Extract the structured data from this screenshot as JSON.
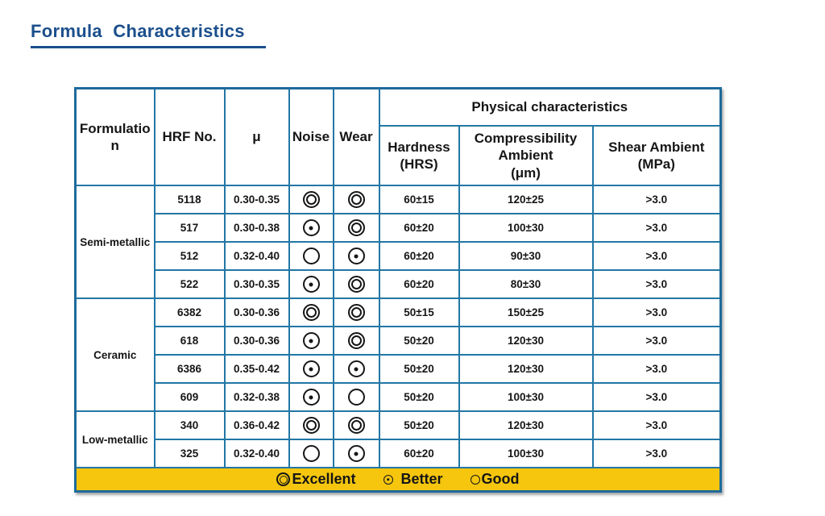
{
  "title": "Formula Characteristics",
  "colors": {
    "title": "#1b4f8c",
    "table_border": "#2277a6",
    "legend_background": "#f5c60d",
    "text": "#161616"
  },
  "table": {
    "header": {
      "formulation": "Formulation",
      "hrf_no": "HRF No.",
      "mu": "μ",
      "noise": "Noise",
      "wear": "Wear",
      "physical": "Physical characteristics",
      "hardness": {
        "label": "Hardness",
        "unit": "(HRS)"
      },
      "compressibility": {
        "label": "Compressibility Ambient",
        "unit": "(μm)"
      },
      "shear": {
        "label": "Shear Ambient",
        "unit": "(MPa)"
      }
    },
    "groups": [
      {
        "name": "Semi-metallic",
        "rows": [
          {
            "hrf_no": "5118",
            "mu": "0.30-0.35",
            "noise": "excellent",
            "wear": "excellent",
            "hardness": "60±15",
            "compressibility_ambient": "120±25",
            "shear_ambient": ">3.0"
          },
          {
            "hrf_no": "517",
            "mu": "0.30-0.38",
            "noise": "better",
            "wear": "excellent",
            "hardness": "60±20",
            "compressibility_ambient": "100±30",
            "shear_ambient": ">3.0"
          },
          {
            "hrf_no": "512",
            "mu": "0.32-0.40",
            "noise": "good",
            "wear": "better",
            "hardness": "60±20",
            "compressibility_ambient": "90±30",
            "shear_ambient": ">3.0"
          },
          {
            "hrf_no": "522",
            "mu": "0.30-0.35",
            "noise": "better",
            "wear": "excellent",
            "hardness": "60±20",
            "compressibility_ambient": "80±30",
            "shear_ambient": ">3.0"
          }
        ]
      },
      {
        "name": "Ceramic",
        "rows": [
          {
            "hrf_no": "6382",
            "mu": "0.30-0.36",
            "noise": "excellent",
            "wear": "excellent",
            "hardness": "50±15",
            "compressibility_ambient": "150±25",
            "shear_ambient": ">3.0"
          },
          {
            "hrf_no": "618",
            "mu": "0.30-0.36",
            "noise": "better",
            "wear": "excellent",
            "hardness": "50±20",
            "compressibility_ambient": "120±30",
            "shear_ambient": ">3.0"
          },
          {
            "hrf_no": "6386",
            "mu": "0.35-0.42",
            "noise": "better",
            "wear": "better",
            "hardness": "50±20",
            "compressibility_ambient": "120±30",
            "shear_ambient": ">3.0"
          },
          {
            "hrf_no": "609",
            "mu": "0.32-0.38",
            "noise": "better",
            "wear": "good",
            "hardness": "50±20",
            "compressibility_ambient": "100±30",
            "shear_ambient": ">3.0"
          }
        ]
      },
      {
        "name": "Low-metallic",
        "rows": [
          {
            "hrf_no": "340",
            "mu": "0.36-0.42",
            "noise": "excellent",
            "wear": "excellent",
            "hardness": "50±20",
            "compressibility_ambient": "120±30",
            "shear_ambient": ">3.0"
          },
          {
            "hrf_no": "325",
            "mu": "0.32-0.40",
            "noise": "good",
            "wear": "better",
            "hardness": "60±20",
            "compressibility_ambient": "100±30",
            "shear_ambient": ">3.0"
          }
        ]
      }
    ],
    "legend": [
      {
        "symbol": "excellent",
        "label": "Excellent"
      },
      {
        "symbol": "better",
        "label": "Better"
      },
      {
        "symbol": "good",
        "label": "Good"
      }
    ]
  }
}
